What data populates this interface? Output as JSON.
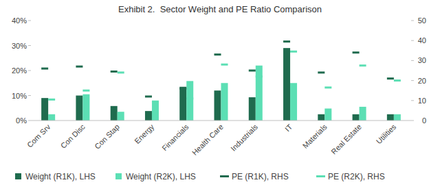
{
  "chart_data": {
    "type": "bar",
    "title": "Exhibit 2.  Sector Weight and PE Ratio Comparison",
    "categories": [
      "Com Srv",
      "Con Disc",
      "Con Stap",
      "Energy",
      "Financials",
      "Health Care",
      "Industrials",
      "IT",
      "Materials",
      "Real Estate",
      "Utilities"
    ],
    "series": [
      {
        "name": "Weight (R1K), LHS",
        "type": "bar",
        "color": "#1f6b4e",
        "values": [
          9,
          10,
          5.8,
          3.8,
          13.5,
          12,
          9.3,
          29,
          2.5,
          2.5,
          2.5
        ]
      },
      {
        "name": "Weight (R2K), LHS",
        "type": "bar",
        "color": "#5cdfb4",
        "values": [
          2.5,
          10.5,
          3.5,
          7.5,
          15.8,
          15,
          22,
          15,
          4.8,
          5.5,
          2.5
        ]
      },
      {
        "name": "PE (R1K), RHS",
        "type": "scatter",
        "marker": "dash",
        "axis": "y2",
        "color": "#1f6b4e",
        "values": [
          26,
          27,
          24.5,
          12,
          16,
          33,
          25,
          39.5,
          24,
          34,
          21
        ]
      },
      {
        "name": "PE (R2K), RHS",
        "type": "scatter",
        "marker": "dash",
        "axis": "y2",
        "color": "#5cdfb4",
        "values": [
          10.5,
          15,
          24,
          9.5,
          11,
          28,
          22,
          34.5,
          16.5,
          27.5,
          20
        ]
      }
    ],
    "ylim": [
      0,
      40
    ],
    "yticks": [
      {
        "value": 0,
        "label": "0%"
      },
      {
        "value": 10,
        "label": "10%"
      },
      {
        "value": 20,
        "label": "20%"
      },
      {
        "value": 30,
        "label": "30%"
      },
      {
        "value": 40,
        "label": "40%"
      }
    ],
    "y2lim": [
      0,
      50
    ],
    "y2ticks": [
      0,
      10,
      20,
      30,
      40,
      50
    ],
    "legend": "bottom"
  }
}
